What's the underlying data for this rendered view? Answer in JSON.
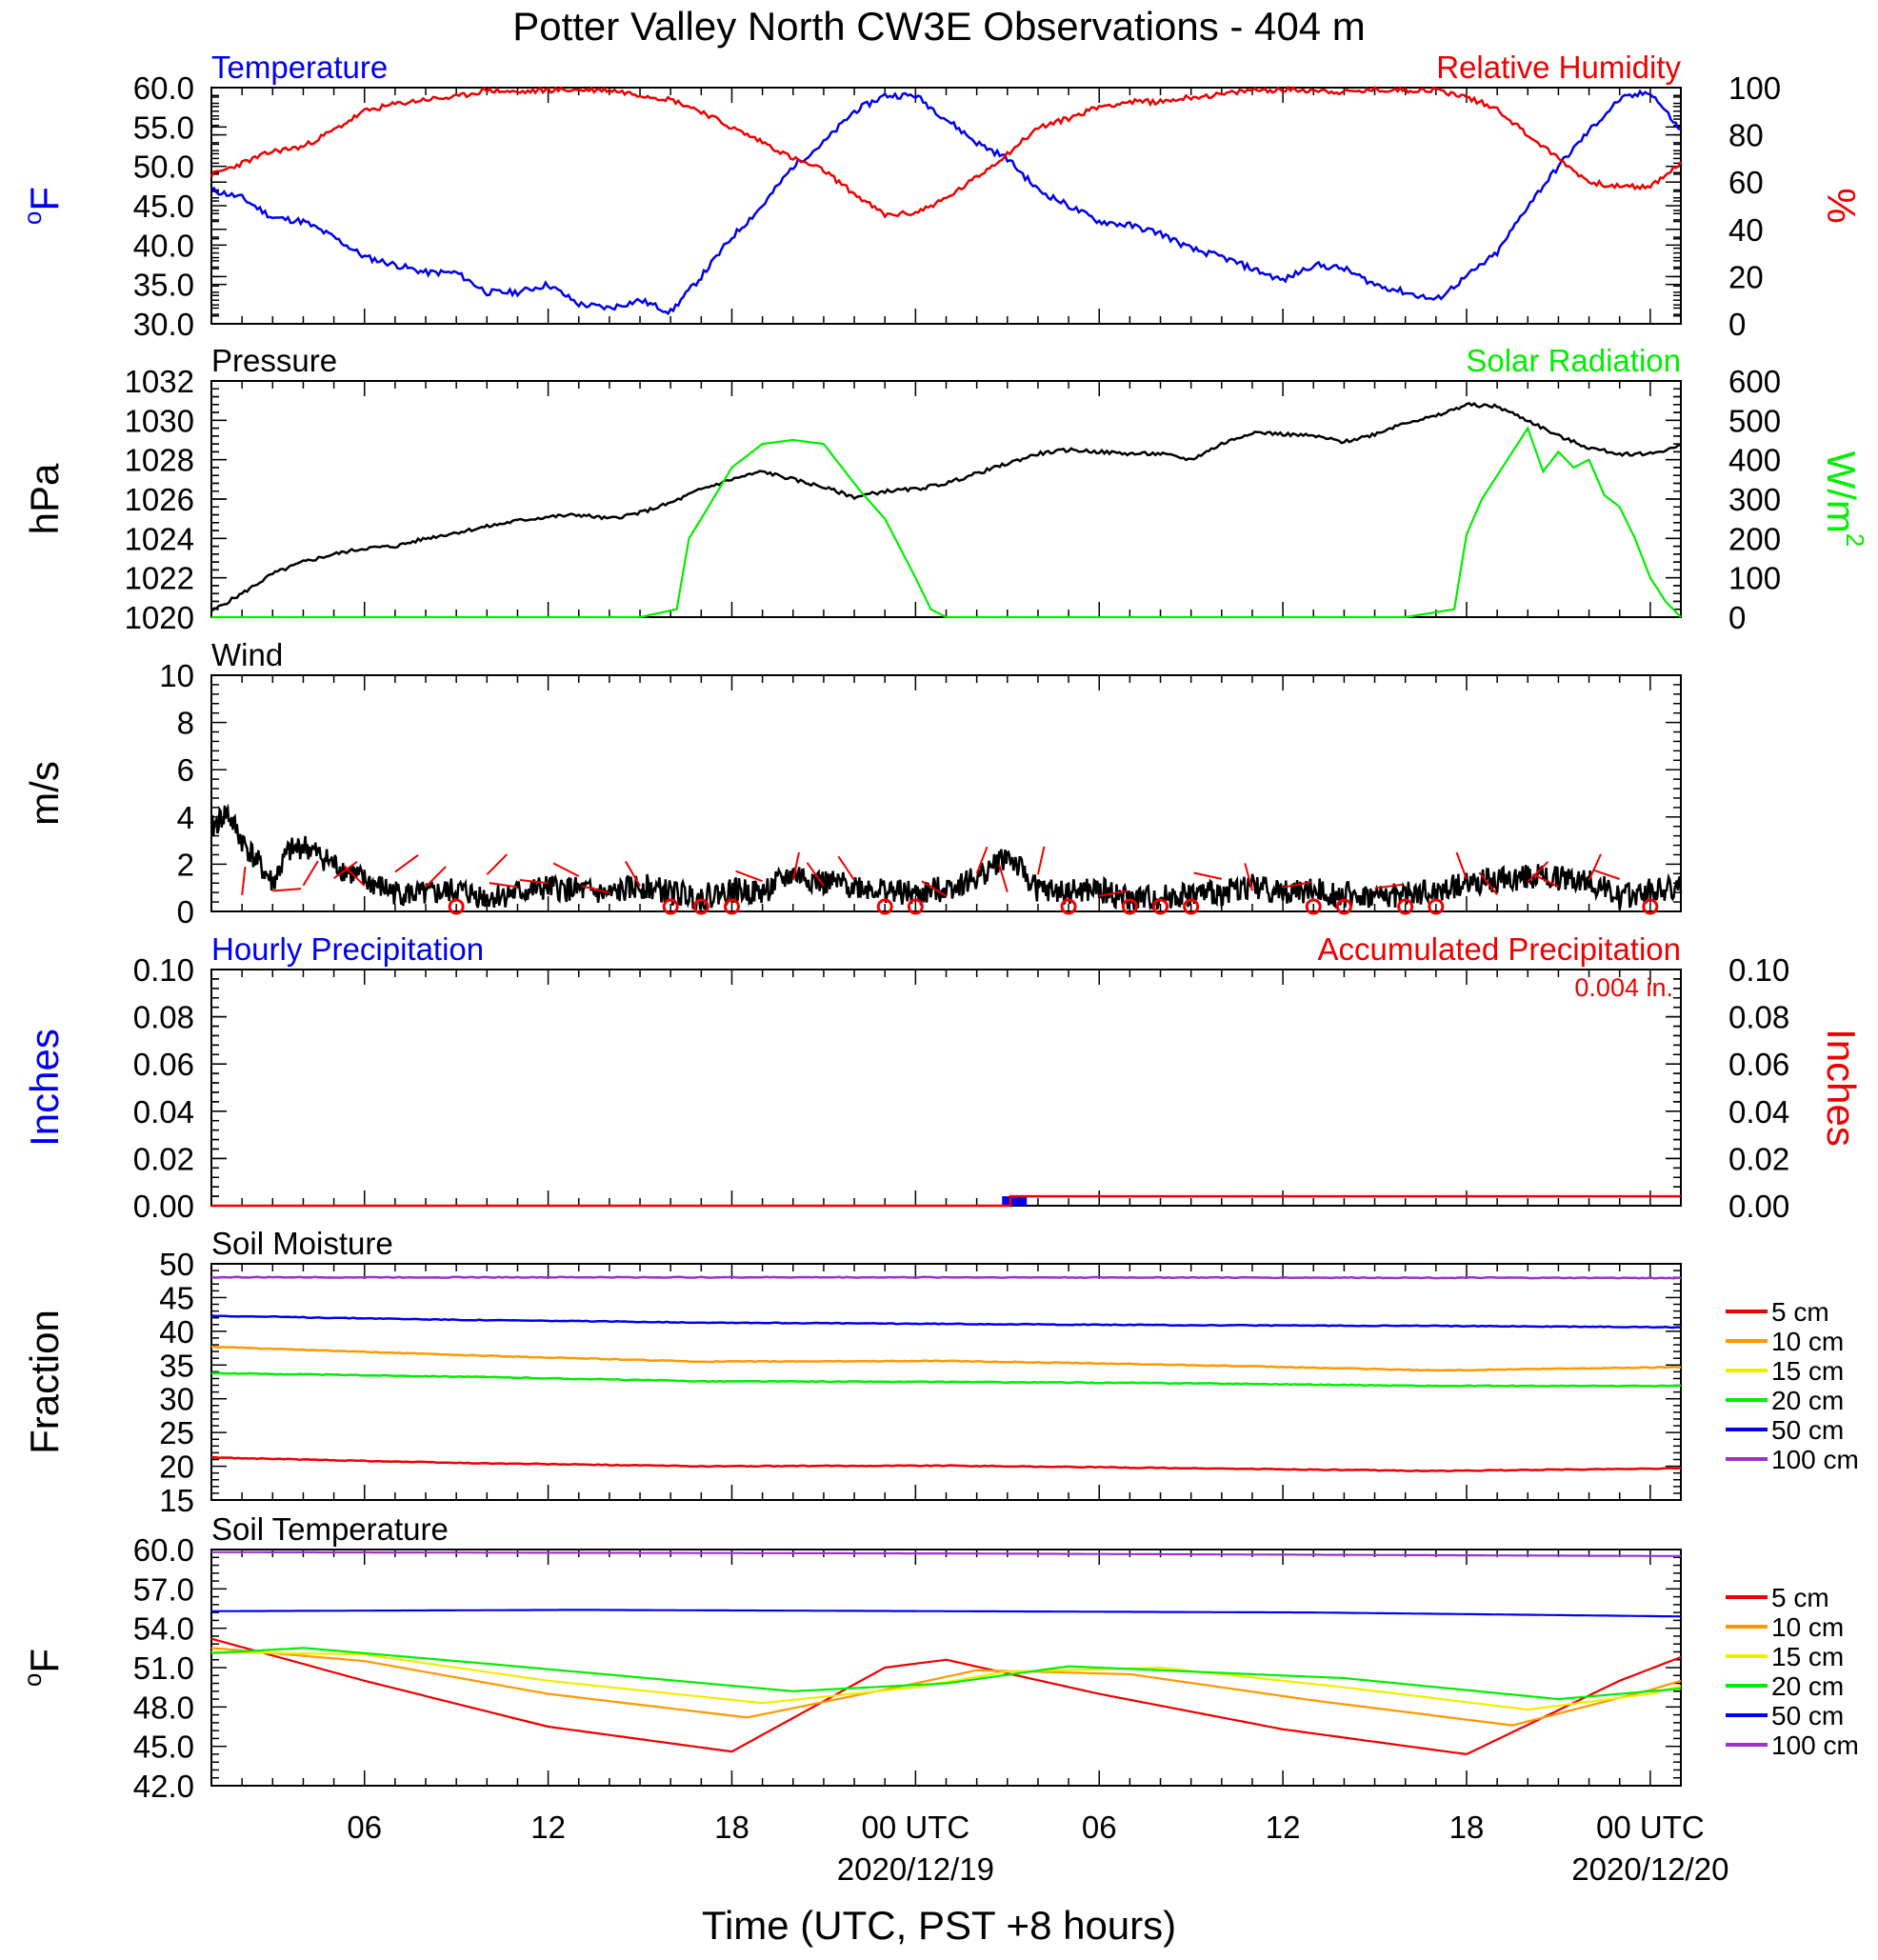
{
  "title": "Potter Valley North CW3E Observations - 404 m",
  "xlabel": "Time (UTC, PST +8 hours)",
  "x_ticks": [
    {
      "hour": 6,
      "label": "06"
    },
    {
      "hour": 12,
      "label": "12"
    },
    {
      "hour": 18,
      "label": "18"
    },
    {
      "hour": 24,
      "label": "00 UTC",
      "date": "2020/12/19"
    },
    {
      "hour": 30,
      "label": "06"
    },
    {
      "hour": 36,
      "label": "12"
    },
    {
      "hour": 42,
      "label": "18"
    },
    {
      "hour": 48,
      "label": "00 UTC",
      "date": "2020/12/20"
    }
  ],
  "x_range_hours": [
    1,
    49
  ],
  "colors": {
    "blue": "#0000ee",
    "red": "#ee0000",
    "green": "#00ee00",
    "black": "#000000",
    "orange": "#ff9900",
    "yellow": "#eeee00",
    "purple": "#9933cc"
  },
  "chart_data": [
    {
      "id": "temp_rh",
      "type": "line",
      "left_title": "Temperature",
      "right_title": "Relative Humidity",
      "left_ylabel": "oF",
      "right_ylabel": "%",
      "ylim_left": [
        30,
        60
      ],
      "ylim_right": [
        0,
        100
      ],
      "left_ticks": [
        "30.0",
        "35.0",
        "40.0",
        "45.0",
        "50.0",
        "55.0",
        "60.0"
      ],
      "right_ticks": [
        "0",
        "20",
        "40",
        "60",
        "80",
        "100"
      ],
      "series": [
        {
          "name": "Temperature",
          "axis": "left",
          "color": "blue",
          "x": [
            1,
            2,
            3,
            4,
            5,
            6,
            7,
            8,
            9,
            10,
            11,
            12,
            13,
            14,
            15,
            16,
            17,
            18,
            19,
            20,
            21,
            22,
            23,
            24,
            25,
            26,
            27,
            28,
            29,
            30,
            31,
            32,
            33,
            34,
            35,
            36,
            37,
            38,
            39,
            40,
            41,
            42,
            43,
            44,
            45,
            46,
            47,
            48,
            49
          ],
          "y": [
            47,
            46,
            43.5,
            43,
            41,
            38.5,
            37.5,
            36.5,
            36.5,
            34,
            34,
            35,
            32.5,
            32,
            33,
            31.5,
            36,
            41,
            45,
            50,
            53,
            57,
            59,
            59,
            56,
            53,
            51,
            47,
            45,
            43,
            42.5,
            41.5,
            39.5,
            38.5,
            37,
            35.5,
            37.5,
            37,
            35,
            34,
            33,
            36,
            39,
            45,
            50,
            54.5,
            58.5,
            59.5,
            54.5
          ]
        },
        {
          "name": "Relative Humidity",
          "axis": "right",
          "color": "red",
          "x": [
            1,
            2,
            3,
            4,
            5,
            6,
            7,
            8,
            9,
            10,
            11,
            12,
            13,
            14,
            15,
            16,
            17,
            18,
            19,
            20,
            21,
            22,
            23,
            24,
            25,
            26,
            27,
            28,
            29,
            30,
            31,
            32,
            33,
            34,
            35,
            36,
            37,
            38,
            39,
            40,
            41,
            42,
            43,
            44,
            45,
            46,
            47,
            48,
            49
          ],
          "y": [
            63,
            68,
            73,
            75,
            82,
            90,
            93,
            95,
            96,
            99,
            98,
            99,
            99,
            99,
            97,
            95,
            90,
            83,
            77,
            70,
            65,
            55,
            46,
            47,
            53,
            62,
            72,
            83,
            87,
            92,
            94,
            94,
            96,
            97,
            99,
            99,
            99,
            98,
            99,
            99,
            99,
            96,
            91,
            80,
            70,
            60,
            58,
            58,
            68
          ]
        }
      ]
    },
    {
      "id": "pressure_solar",
      "type": "line",
      "left_title": "Pressure",
      "right_title": "Solar Radiation",
      "left_ylabel": "hPa",
      "right_ylabel": "W/m",
      "right_ylabel_sup": "2",
      "ylim_left": [
        1020,
        1032
      ],
      "ylim_right": [
        0,
        600
      ],
      "left_ticks": [
        "1020",
        "1022",
        "1024",
        "1026",
        "1028",
        "1030",
        "1032"
      ],
      "right_ticks": [
        "0",
        "100",
        "200",
        "300",
        "400",
        "500",
        "600"
      ],
      "series": [
        {
          "name": "Pressure",
          "axis": "left",
          "color": "black",
          "x": [
            1,
            2,
            3,
            4,
            5,
            6,
            7,
            8,
            9,
            10,
            11,
            12,
            13,
            14,
            15,
            16,
            17,
            18,
            19,
            20,
            21,
            22,
            23,
            24,
            25,
            26,
            27,
            28,
            29,
            30,
            31,
            32,
            33,
            34,
            35,
            36,
            37,
            38,
            39,
            40,
            41,
            42,
            43,
            44,
            45,
            46,
            47,
            48,
            49
          ],
          "y": [
            1020.3,
            1021.2,
            1022.2,
            1022.8,
            1023.2,
            1023.5,
            1023.6,
            1024,
            1024.3,
            1024.6,
            1024.9,
            1025.1,
            1025.2,
            1025,
            1025.3,
            1025.8,
            1026.5,
            1027,
            1027.4,
            1027,
            1026.6,
            1026.1,
            1026.4,
            1026.5,
            1026.8,
            1027.3,
            1027.8,
            1028.3,
            1028.5,
            1028.4,
            1028.3,
            1028.3,
            1028,
            1028.8,
            1029.4,
            1029.3,
            1029.2,
            1028.9,
            1029.3,
            1029.9,
            1030.2,
            1030.8,
            1030.7,
            1030,
            1029.2,
            1028.6,
            1028.3,
            1028.3,
            1028.7
          ]
        },
        {
          "name": "Solar Radiation",
          "axis": "right",
          "color": "green",
          "x": [
            1,
            15,
            16.2,
            16.6,
            17,
            18,
            19,
            20,
            21,
            21.8,
            22.2,
            23,
            24,
            24.5,
            25,
            26,
            40,
            41.6,
            42,
            42.5,
            43,
            44,
            44.5,
            45,
            45.5,
            46,
            46.5,
            47,
            47.5,
            48,
            48.5,
            49
          ],
          "y": [
            0,
            0,
            20,
            200,
            250,
            380,
            440,
            450,
            440,
            360,
            320,
            250,
            100,
            20,
            0,
            0,
            0,
            20,
            210,
            300,
            360,
            480,
            370,
            420,
            380,
            400,
            310,
            280,
            200,
            100,
            40,
            0
          ]
        }
      ]
    },
    {
      "id": "wind",
      "type": "line",
      "left_title": "Wind",
      "left_ylabel": "m/s",
      "ylim_left": [
        0,
        10
      ],
      "left_ticks": [
        "0",
        "2",
        "4",
        "6",
        "8",
        "10"
      ],
      "series": [
        {
          "name": "Wind",
          "axis": "left",
          "color": "black",
          "x": [
            1,
            1.5,
            2,
            3,
            3.5,
            4,
            5,
            6,
            7,
            8,
            9,
            10,
            11,
            12,
            13,
            14,
            15,
            16,
            17,
            18,
            19,
            20,
            21,
            22,
            23,
            24,
            25,
            26,
            27,
            28,
            29,
            30,
            31,
            32,
            33,
            34,
            35,
            36,
            37,
            38,
            39,
            40,
            41,
            42,
            43,
            44,
            45,
            46,
            47,
            48,
            49
          ],
          "y": [
            3.5,
            4.2,
            3,
            1.2,
            2.5,
            2.8,
            2,
            1.3,
            0.8,
            0.7,
            0.9,
            0.6,
            0.8,
            1,
            0.9,
            0.7,
            1.1,
            0.8,
            0.6,
            0.9,
            0.8,
            1.6,
            1.2,
            1.1,
            0.9,
            0.7,
            1,
            1.4,
            2.4,
            0.9,
            0.8,
            0.9,
            0.5,
            0.6,
            0.7,
            0.8,
            1.1,
            0.8,
            0.9,
            0.7,
            0.6,
            0.7,
            0.8,
            1.2,
            1.3,
            1.5,
            1.4,
            1.3,
            0.6,
            0.9,
            1
          ]
        }
      ],
      "calm_hours": [
        9,
        16,
        17,
        18,
        23,
        24,
        29,
        31,
        32,
        33,
        37,
        38,
        40,
        41,
        48
      ]
    },
    {
      "id": "precip",
      "type": "bar",
      "left_title": "Hourly Precipitation",
      "right_title": "Accumulated Precipitation",
      "left_ylabel": "Inches",
      "right_ylabel": "Inches",
      "accumulated_label": "0.004 in.",
      "ylim_left": [
        0,
        0.1
      ],
      "ylim_right": [
        0,
        0.1
      ],
      "left_ticks": [
        "0.00",
        "0.02",
        "0.04",
        "0.06",
        "0.08",
        "0.10"
      ],
      "right_ticks": [
        "0.00",
        "0.02",
        "0.04",
        "0.06",
        "0.08",
        "0.10"
      ],
      "hourly": [
        {
          "hour": 27.2,
          "value": 0.004
        }
      ],
      "accumulated": {
        "x": [
          1,
          27.1,
          27.1,
          49
        ],
        "y": [
          0,
          0,
          0.004,
          0.004
        ]
      }
    },
    {
      "id": "soil_moisture",
      "type": "line",
      "left_title": "Soil Moisture",
      "left_ylabel": "Fraction",
      "ylim_left": [
        15,
        50
      ],
      "left_ticks": [
        "15",
        "20",
        "25",
        "30",
        "35",
        "40",
        "45",
        "50"
      ],
      "series": [
        {
          "name": "5 cm",
          "color": "red",
          "x": [
            1,
            9,
            17,
            25,
            33,
            41,
            49
          ],
          "y": [
            21.3,
            20.5,
            20,
            20.1,
            19.7,
            19.3,
            19.7
          ]
        },
        {
          "name": "10 cm",
          "color": "orange",
          "x": [
            1,
            9,
            17,
            25,
            33,
            41,
            49
          ],
          "y": [
            37.7,
            36.5,
            35.5,
            35.6,
            35,
            34.2,
            34.7
          ]
        },
        {
          "name": "15 cm",
          "color": "yellow",
          "x": [
            1,
            49
          ],
          "y": [
            null,
            null
          ]
        },
        {
          "name": "20 cm",
          "color": "green",
          "x": [
            1,
            9,
            17,
            25,
            33,
            41,
            49
          ],
          "y": [
            33.8,
            33.3,
            32.6,
            32.5,
            32.3,
            31.9,
            31.9
          ]
        },
        {
          "name": "50 cm",
          "color": "blue",
          "x": [
            1,
            9,
            17,
            25,
            33,
            41,
            49
          ],
          "y": [
            42.3,
            41.7,
            41.3,
            41.1,
            40.9,
            40.8,
            40.6
          ]
        },
        {
          "name": "100 cm",
          "color": "purple",
          "x": [
            1,
            25,
            49
          ],
          "y": [
            48,
            48,
            47.9
          ]
        }
      ]
    },
    {
      "id": "soil_temp",
      "type": "line",
      "left_title": "Soil Temperature",
      "left_ylabel": "oF",
      "ylim_left": [
        42,
        60
      ],
      "left_ticks": [
        "42.0",
        "45.0",
        "48.0",
        "51.0",
        "54.0",
        "57.0",
        "60.0"
      ],
      "series": [
        {
          "name": "5 cm",
          "color": "red",
          "x": [
            1,
            6,
            12,
            18,
            23,
            25,
            30,
            36,
            42,
            47,
            49
          ],
          "y": [
            53.2,
            50,
            46.5,
            44.6,
            51,
            51.6,
            49,
            46.3,
            44.4,
            50,
            51.8
          ]
        },
        {
          "name": "10 cm",
          "color": "orange",
          "x": [
            1,
            6,
            12,
            18.5,
            24,
            26,
            31,
            37,
            43.5,
            48,
            49
          ],
          "y": [
            52.5,
            51.5,
            49,
            47.2,
            49.8,
            50.8,
            50.5,
            48.5,
            46.6,
            49.3,
            50
          ]
        },
        {
          "name": "15 cm",
          "color": "yellow",
          "x": [
            1,
            6,
            12,
            19,
            24,
            27,
            32,
            38,
            44,
            48,
            49
          ],
          "y": [
            52.2,
            52,
            50,
            48.3,
            49.5,
            50.7,
            51,
            49.5,
            47.8,
            49,
            49.6
          ]
        },
        {
          "name": "20 cm",
          "color": "green",
          "x": [
            1,
            4,
            10,
            20,
            25,
            29,
            38,
            45,
            49
          ],
          "y": [
            52.1,
            52.5,
            51.3,
            49.2,
            49.8,
            51.1,
            50.2,
            48.6,
            49.4
          ]
        },
        {
          "name": "50 cm",
          "color": "blue",
          "x": [
            1,
            13,
            25,
            37,
            49
          ],
          "y": [
            55.3,
            55.4,
            55.3,
            55.2,
            54.9
          ]
        },
        {
          "name": "100 cm",
          "color": "purple",
          "x": [
            1,
            25,
            49
          ],
          "y": [
            59.8,
            59.7,
            59.5
          ]
        }
      ]
    }
  ]
}
